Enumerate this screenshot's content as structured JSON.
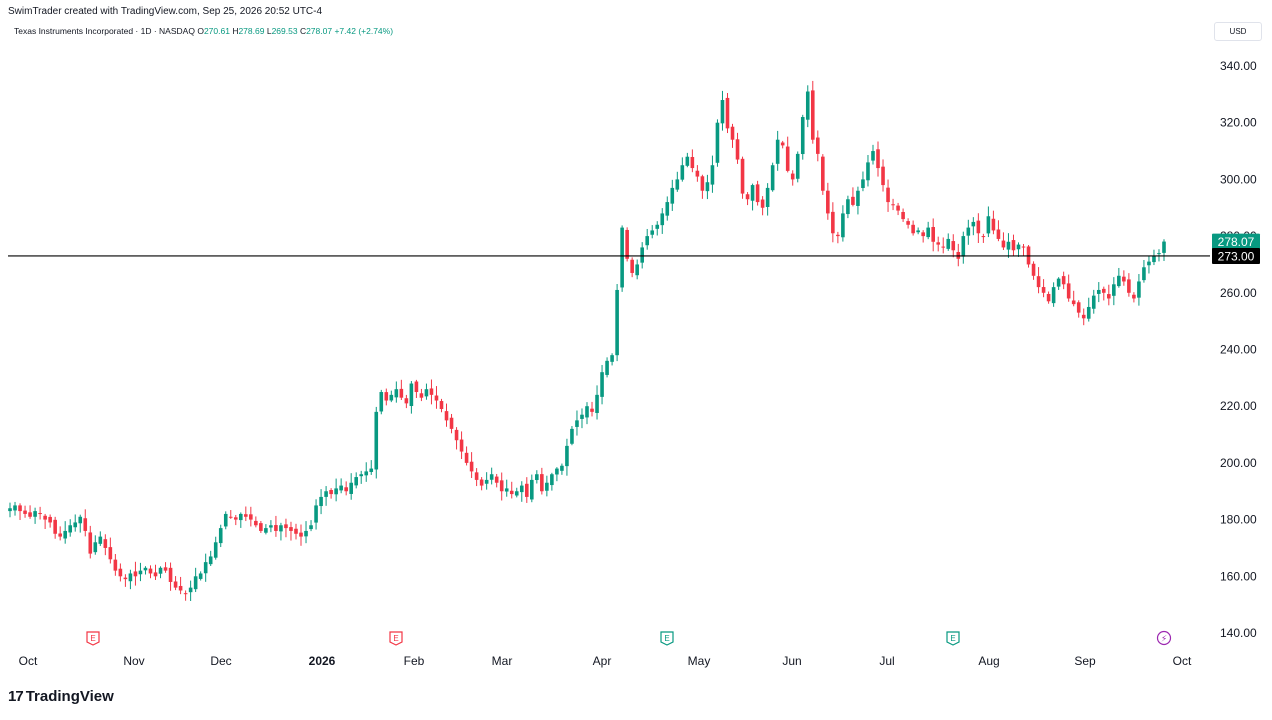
{
  "header": {
    "credit": "SwimTrader created with TradingView.com, Sep 25, 2026 20:52 UTC-4",
    "symbol": "Texas Instruments Incorporated · 1D · NASDAQ",
    "o_label": "O",
    "o_value": "270.61",
    "h_label": "H",
    "h_value": "278.69",
    "l_label": "L",
    "l_value": "269.53",
    "c_label": "C",
    "c_value": "278.07",
    "change": "+7.42 (+2.74%)"
  },
  "currency_button": "USD",
  "brand": "TradingView",
  "colors": {
    "up": "#089981",
    "down": "#f23645",
    "grid": "#ffffff",
    "hline": "#000000"
  },
  "chart_data": {
    "type": "candlestick",
    "y_axis_ticks": [
      "340.00",
      "320.00",
      "300.00",
      "280.00",
      "260.00",
      "240.00",
      "220.00",
      "200.00",
      "180.00",
      "160.00",
      "140.00"
    ],
    "y_range": [
      140,
      340
    ],
    "x_axis_ticks": [
      "Oct",
      "Nov",
      "Dec",
      "2026",
      "Feb",
      "Mar",
      "Apr",
      "May",
      "Jun",
      "Jul",
      "Aug",
      "Sep",
      "Oct"
    ],
    "horizontal_line": {
      "value": 273.0,
      "label": "273.00"
    },
    "last_price": {
      "value": 278.07,
      "label": "278.07"
    },
    "events": [
      {
        "date": "Oct 21",
        "type": "earnings-red",
        "label": "E"
      },
      {
        "date": "Jan 27",
        "type": "earnings-red",
        "label": "E"
      },
      {
        "date": "Apr 22",
        "type": "earnings-green",
        "label": "E"
      },
      {
        "date": "Jul 22",
        "type": "earnings-green",
        "label": "E"
      },
      {
        "date": "Sep 24",
        "type": "dividend",
        "label": "⚡"
      }
    ],
    "closes": [
      184,
      185,
      183,
      182,
      181,
      183,
      182,
      180,
      179,
      175,
      174,
      176,
      178,
      179,
      181,
      176,
      168,
      172,
      174,
      170,
      166,
      162,
      160,
      159,
      161,
      160,
      162,
      163,
      161,
      160,
      163,
      162,
      158,
      156,
      155,
      154,
      156,
      160,
      161,
      165,
      167,
      172,
      177,
      182,
      181,
      180,
      182,
      181,
      180,
      178,
      176,
      177,
      178,
      176,
      178,
      177,
      176,
      175,
      174,
      176,
      178,
      185,
      188,
      190,
      189,
      191,
      192,
      190,
      193,
      195,
      196,
      197,
      198,
      218,
      225,
      222,
      224,
      226,
      223,
      221,
      228,
      225,
      223,
      226,
      224,
      222,
      219,
      215,
      212,
      208,
      204,
      200,
      197,
      194,
      192,
      194,
      196,
      193,
      190,
      191,
      189,
      190,
      192,
      188,
      194,
      196,
      190,
      193,
      196,
      198,
      199,
      206,
      212,
      215,
      217,
      220,
      218,
      224,
      232,
      236,
      238,
      261,
      283,
      272,
      267,
      270,
      276,
      280,
      282,
      284,
      288,
      292,
      297,
      300,
      305,
      308,
      304,
      301,
      296,
      299,
      305,
      320,
      328,
      318,
      314,
      307,
      295,
      293,
      298,
      292,
      290,
      297,
      305,
      314,
      312,
      303,
      300,
      309,
      322,
      331,
      314,
      309,
      296,
      288,
      281,
      280,
      288,
      293,
      291,
      296,
      300,
      306,
      310,
      304,
      298,
      292,
      291,
      289,
      286,
      284,
      281,
      282,
      280,
      283,
      278,
      277,
      276,
      279,
      275,
      272,
      280,
      283,
      285,
      281,
      280,
      287,
      282,
      279,
      276,
      278,
      275,
      277,
      276,
      270,
      266,
      262,
      260,
      257,
      262,
      265,
      263,
      258,
      256,
      253,
      251,
      255,
      259,
      261,
      260,
      258,
      263,
      266,
      264,
      260,
      258,
      264,
      269,
      271,
      273,
      274,
      278.07
    ]
  }
}
